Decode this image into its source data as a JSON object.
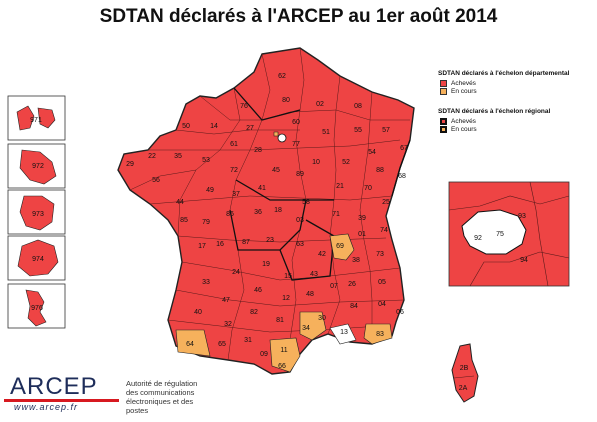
{
  "title": "SDTAN déclarés à l'ARCEP au 1er août 2014",
  "colors": {
    "achieved": "#ee4444",
    "in_progress": "#f6b15c",
    "none": "#ffffff",
    "border": "#222222"
  },
  "legend": {
    "departmental_heading": "SDTAN déclarés à l'échelon départemental",
    "departmental_achieved": "Achevés",
    "departmental_in_progress": "En cours",
    "regional_heading": "SDTAN déclarés à l'échelon régional",
    "regional_achieved": "Achevés",
    "regional_in_progress": "En cours"
  },
  "department_labels": {
    "d62": "62",
    "d76": "76",
    "d80": "80",
    "d02": "02",
    "d08": "08",
    "d14": "14",
    "d50": "50",
    "d27": "27",
    "d60": "60",
    "d51": "51",
    "d55": "55",
    "d57": "57",
    "d67": "67",
    "d35": "35",
    "d29": "29",
    "d22": "22",
    "d53": "53",
    "d61": "61",
    "d28": "28",
    "d77": "77",
    "d10": "10",
    "d52": "52",
    "d54": "54",
    "d88": "88",
    "d68": "68",
    "d56": "56",
    "d72": "72",
    "d45": "45",
    "d89": "89",
    "d21": "21",
    "d70": "70",
    "d25": "25",
    "d44": "44",
    "d49": "49",
    "d37": "37",
    "d41": "41",
    "d18": "18",
    "d58": "58",
    "d71": "71",
    "d39": "39",
    "d85": "85",
    "d79": "79",
    "d86": "86",
    "d36": "36",
    "d03": "03",
    "d01": "01",
    "d74": "74",
    "d17": "17",
    "d16": "16",
    "d87": "87",
    "d23": "23",
    "d63": "63",
    "d69": "69",
    "d42": "42",
    "d38": "38",
    "d73": "73",
    "d33": "33",
    "d24": "24",
    "d19": "19",
    "d15": "15",
    "d43": "43",
    "d07": "07",
    "d26": "26",
    "d05": "05",
    "d40": "40",
    "d47": "47",
    "d46": "46",
    "d12": "12",
    "d48": "48",
    "d30": "30",
    "d84": "84",
    "d04": "04",
    "d06": "06",
    "d64": "64",
    "d32": "32",
    "d82": "82",
    "d81": "81",
    "d34": "34",
    "d13": "13",
    "d83": "83",
    "d65": "65",
    "d31": "31",
    "d09": "09",
    "d11": "11",
    "d66": "66",
    "d2B": "2B",
    "d2A": "2A",
    "d971": "971",
    "d972": "972",
    "d973": "973",
    "d974": "974",
    "d976": "976",
    "d75": "75",
    "d92": "92",
    "d93": "93",
    "d94": "94"
  },
  "logo": {
    "name": "ARCEP",
    "url": "www.arcep.fr",
    "authority": "Autorité de régulation des communications électroniques et des postes"
  }
}
